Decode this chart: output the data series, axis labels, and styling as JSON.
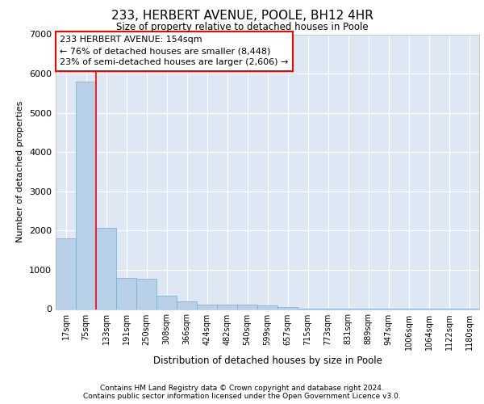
{
  "title": "233, HERBERT AVENUE, POOLE, BH12 4HR",
  "subtitle": "Size of property relative to detached houses in Poole",
  "xlabel": "Distribution of detached houses by size in Poole",
  "ylabel": "Number of detached properties",
  "bar_color": "#b8d0e8",
  "bar_edge_color": "#7aaac8",
  "background_color": "#dde8f4",
  "grid_color": "#ffffff",
  "categories": [
    "17sqm",
    "75sqm",
    "133sqm",
    "191sqm",
    "250sqm",
    "308sqm",
    "366sqm",
    "424sqm",
    "482sqm",
    "540sqm",
    "599sqm",
    "657sqm",
    "715sqm",
    "773sqm",
    "831sqm",
    "889sqm",
    "947sqm",
    "1006sqm",
    "1064sqm",
    "1122sqm",
    "1180sqm"
  ],
  "values": [
    1800,
    5800,
    2060,
    800,
    780,
    340,
    195,
    120,
    105,
    105,
    100,
    50,
    10,
    5,
    4,
    4,
    3,
    2,
    2,
    1,
    1
  ],
  "red_line_x": 1.5,
  "annotation_text": "233 HERBERT AVENUE: 154sqm\n← 76% of detached houses are smaller (8,448)\n23% of semi-detached houses are larger (2,606) →",
  "ylim": [
    0,
    7000
  ],
  "yticks": [
    0,
    1000,
    2000,
    3000,
    4000,
    5000,
    6000,
    7000
  ],
  "footer_line1": "Contains HM Land Registry data © Crown copyright and database right 2024.",
  "footer_line2": "Contains public sector information licensed under the Open Government Licence v3.0."
}
